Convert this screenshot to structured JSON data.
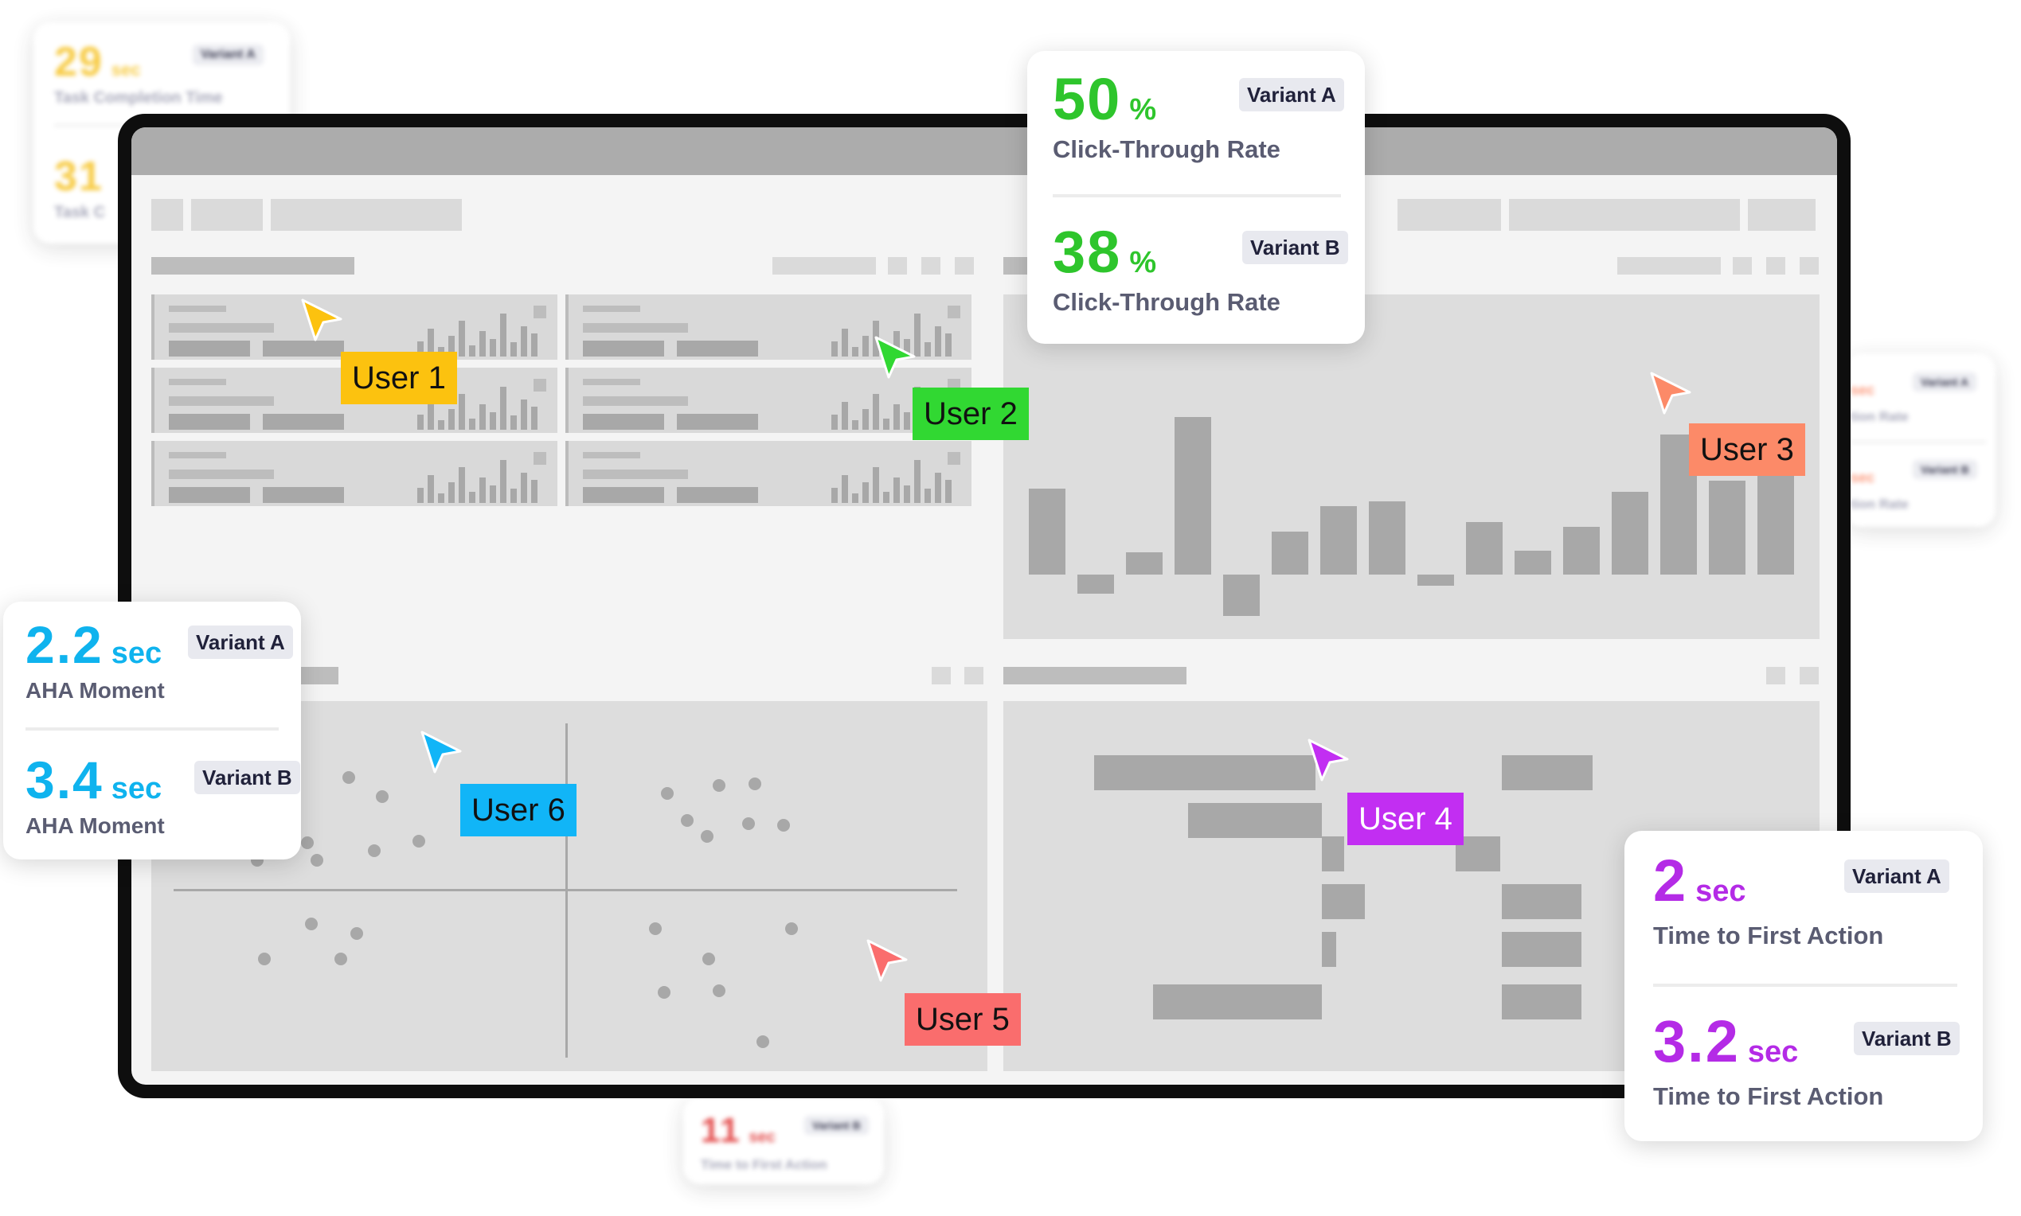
{
  "users": [
    {
      "label": "User 1",
      "color": "#fcc20f"
    },
    {
      "label": "User 2",
      "color": "#31d832"
    },
    {
      "label": "User 3",
      "color": "#fc8a68"
    },
    {
      "label": "User 4",
      "color": "#c22ef2"
    },
    {
      "label": "User 5",
      "color": "#fa6d6d"
    },
    {
      "label": "User 6",
      "color": "#11b5f7"
    }
  ],
  "cards": {
    "ctr": {
      "a": {
        "value": "50",
        "unit": "%",
        "label": "Click-Through Rate",
        "variant": "Variant A"
      },
      "b": {
        "value": "38",
        "unit": "%",
        "label": "Click-Through Rate",
        "variant": "Variant B"
      },
      "color": "#2ec52c"
    },
    "aha": {
      "a": {
        "value": "2.2",
        "unit": "sec",
        "label": "AHA Moment",
        "variant": "Variant A"
      },
      "b": {
        "value": "3.4",
        "unit": "sec",
        "label": "AHA Moment",
        "variant": "Variant B"
      },
      "color": "#0fb3ee"
    },
    "tfa": {
      "a": {
        "value": "2",
        "unit": "sec",
        "label": "Time to First Action",
        "variant": "Variant A"
      },
      "b": {
        "value": "3.2",
        "unit": "sec",
        "label": "Time to First Action",
        "variant": "Variant B"
      },
      "color": "#b42be6"
    },
    "task": {
      "a": {
        "value": "29",
        "unit": "sec",
        "label": "Task Completion Time",
        "variant": "Variant A"
      },
      "b": {
        "value": "31",
        "label": "Task C"
      },
      "color": "#f7c325"
    },
    "tfa_small": {
      "value": "11",
      "unit": "sec",
      "label": "Time to First Action",
      "variant": "Variant B",
      "color": "#e03232"
    },
    "right_small": {
      "a": {
        "unit": "sec",
        "label": "tion Rate",
        "variant": "Variant A"
      },
      "b": {
        "unit": "sec",
        "label": "tion Rate",
        "variant": "Variant B"
      },
      "color": "#fc8a68"
    }
  }
}
